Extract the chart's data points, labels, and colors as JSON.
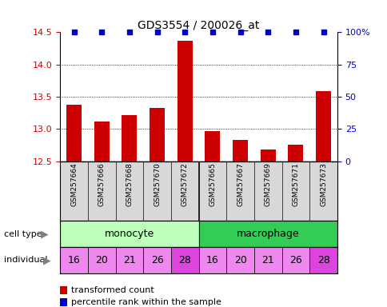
{
  "title": "GDS3554 / 200026_at",
  "samples": [
    "GSM257664",
    "GSM257666",
    "GSM257668",
    "GSM257670",
    "GSM257672",
    "GSM257665",
    "GSM257667",
    "GSM257669",
    "GSM257671",
    "GSM257673"
  ],
  "bar_values": [
    13.38,
    13.12,
    13.22,
    13.32,
    14.37,
    12.97,
    12.83,
    12.68,
    12.75,
    13.59
  ],
  "bar_color": "#cc0000",
  "percentile_color": "#0000cc",
  "ylim": [
    12.5,
    14.5
  ],
  "yticks": [
    12.5,
    13.0,
    13.5,
    14.0,
    14.5
  ],
  "right_yticks": [
    0,
    25,
    50,
    75,
    100
  ],
  "right_ylabels": [
    "0",
    "25",
    "50",
    "75",
    "100%"
  ],
  "cell_type_monocyte_color": "#bbffbb",
  "cell_type_macrophage_color": "#33cc55",
  "individuals": [
    "16",
    "20",
    "21",
    "26",
    "28",
    "16",
    "20",
    "21",
    "26",
    "28"
  ],
  "individual_colors_light": "#ee88ee",
  "individual_color_28": "#dd44dd",
  "legend_red_label": "transformed count",
  "legend_blue_label": "percentile rank within the sample",
  "tick_label_color_left": "#cc0000",
  "tick_label_color_right": "#0000cc",
  "dotted_grid_values": [
    13.0,
    13.5,
    14.0
  ]
}
